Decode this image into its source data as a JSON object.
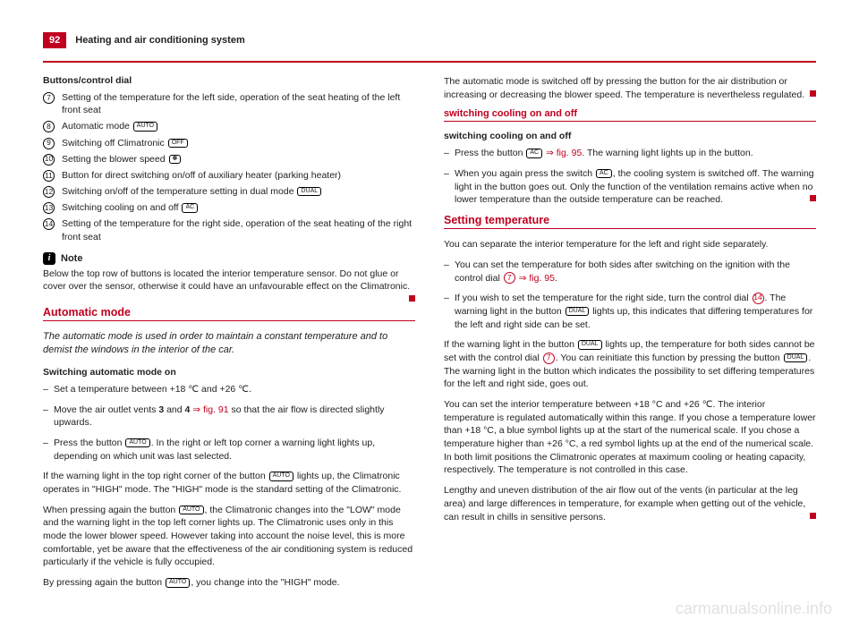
{
  "header": {
    "page_num": "92",
    "title": "Heating and air conditioning system"
  },
  "left": {
    "sub1": "Buttons/control dial",
    "items": [
      {
        "n": "7",
        "text": "Setting of the temperature for the left side, operation of the seat heating of the left front seat"
      },
      {
        "n": "8",
        "text": "Automatic mode ",
        "btn": "AUTO"
      },
      {
        "n": "9",
        "text": "Switching off Climatronic ",
        "btn": "OFF"
      },
      {
        "n": "10",
        "text": "Setting the blower speed ",
        "btn": "✽"
      },
      {
        "n": "11",
        "text": "Button for direct switching on/off of auxiliary heater (parking heater)"
      },
      {
        "n": "12",
        "text": "Switching on/off of the temperature setting in dual mode ",
        "btn": "DUAL"
      },
      {
        "n": "13",
        "text": "Switching cooling on and off ",
        "btn": "AC"
      },
      {
        "n": "14",
        "text": "Setting of the temperature for the right side, operation of the seat heating of the right front seat"
      }
    ],
    "note_label": "Note",
    "note_body": "Below the top row of buttons is located the interior temperature sensor. Do not glue or cover over the sensor, otherwise it could have an unfavourable effect on the Climatronic.",
    "section1_title": "Automatic mode",
    "section1_intro": "The automatic mode is used in order to maintain a constant temperature and to demist the windows in the interior of the car.",
    "section1_sub": "Switching automatic mode on",
    "s1_b1": "Set a temperature between +18 ℃ and +26 ℃.",
    "s1_b2_a": "Move the air outlet vents ",
    "s1_b2_bold1": "3",
    "s1_b2_mid": " and ",
    "s1_b2_bold2": "4",
    "s1_b2_ref": " ⇒ fig. 91",
    "s1_b2_b": " so that the air flow is directed slightly upwards.",
    "s1_b3_a": "Press the button ",
    "s1_b3_b": ". In the right or left top corner a warning light lights up, depending on which unit was last selected.",
    "s1_p1_a": "If the warning light in the top right corner of the button ",
    "s1_p1_b": " lights up, the Climatronic operates in \"HIGH\" mode. The \"HIGH\" mode is the standard setting of the Climatronic.",
    "s1_p2_a": "When pressing again the button ",
    "s1_p2_b": ", the Climatronic changes into the \"LOW\" mode and the warning light in the top left corner lights up. The Climatronic uses only in this mode the lower blower speed. However taking into account the noise level, this is more comfortable, yet be aware that the effectiveness of the air conditioning system is reduced particularly if the vehicle is fully occupied.",
    "s1_p3_a": "By pressing again the button ",
    "s1_p3_b": ", you change into the \"HIGH\" mode."
  },
  "right": {
    "top_para": "The automatic mode is switched off by pressing the button for the air distribution or increasing or decreasing the blower speed. The temperature is nevertheless regulated.",
    "section2_title": "switching cooling on and off",
    "section2_sub": "switching cooling on and off",
    "s2_b1_a": "Press the button ",
    "s2_b1_ref": " ⇒ fig. 95",
    "s2_b1_b": ". The warning light lights up in the button.",
    "s2_b2_a": "When you again press the switch ",
    "s2_b2_b": ", the cooling system is switched off. The warning light in the button goes out. Only the function of the ventilation remains active when no lower temperature than the outside temperature can be reached.",
    "section3_title": "Setting temperature",
    "s3_p1": "You can separate the interior temperature for the left and right side separately.",
    "s3_b1_a": "You can set the temperature for both sides after switching on the ignition with the control dial ",
    "s3_b1_ref": " ⇒ fig. 95",
    "s3_b1_b": ".",
    "s3_b2_a": "If you wish to set the temperature for the right side, turn the control dial ",
    "s3_b2_b": ". The warning light in the button ",
    "s3_b2_c": " lights up, this indicates that differing temperatures for the left and right side can be set.",
    "s3_p2_a": "If the warning light in the button ",
    "s3_p2_b": " lights up, the temperature for both sides cannot be set with the control dial ",
    "s3_p2_c": ". You can reinitiate this function by pressing the button ",
    "s3_p2_d": ". The warning light in the button which indicates the possibility to set differing temperatures for the left and right side, goes out.",
    "s3_p3": "You can set the interior temperature between +18 °C and +26 ℃. The interior temperature is regulated automatically within this range. If you chose a temperature lower than +18 °C, a blue symbol lights up at the start of the numerical scale. If you chose a temperature higher than +26 °C, a red symbol lights up at the end of the numerical scale. In both limit positions the Climatronic operates at maximum cooling or heating capacity, respectively. The temperature is not controlled in this case.",
    "s3_p4": "Lengthy and uneven distribution of the air flow out of the vents (in particular at the leg area) and large differences in temperature, for example when getting out of the vehicle, can result in chills in sensitive persons."
  },
  "labels": {
    "auto": "AUTO",
    "off": "OFF",
    "dual": "DUAL",
    "ac": "AC",
    "fan": "✽"
  },
  "watermark": "carmanualsonline.info"
}
